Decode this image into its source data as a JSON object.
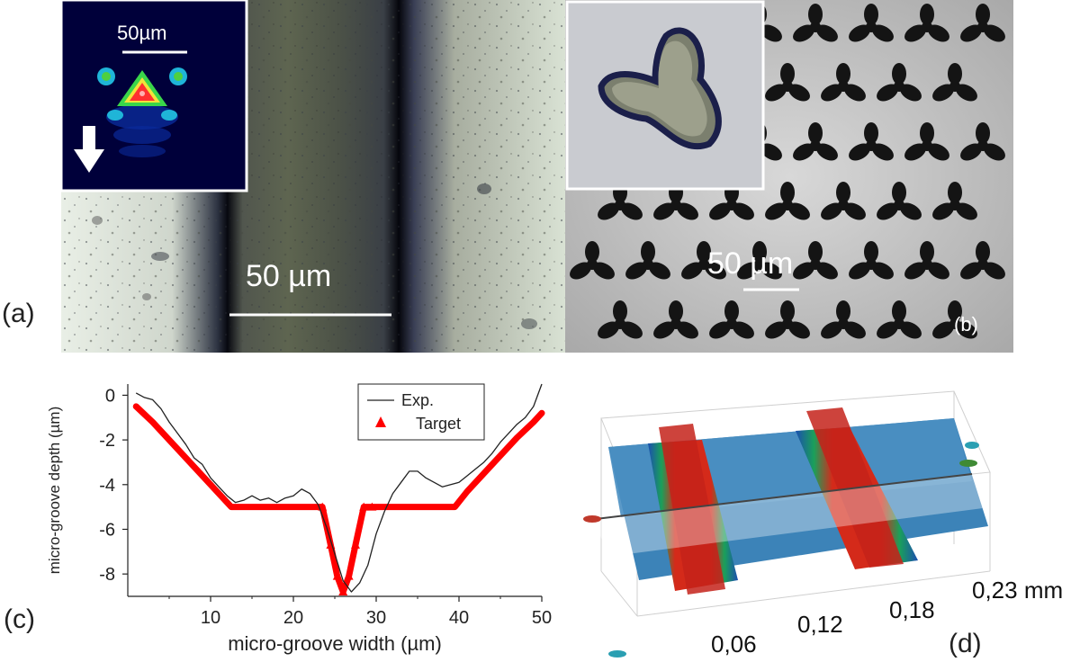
{
  "panel_labels": {
    "a": "(a)",
    "b": "(b)",
    "c": "(c)",
    "d": "(d)"
  },
  "panel_a": {
    "inset_scale": "50µm",
    "scale_bar": "50 µm"
  },
  "panel_b": {
    "scale_bar": "50 µm"
  },
  "chart_data": {
    "type": "line",
    "xlabel": "micro-groove width (µm)",
    "ylabel": "micro-groove depth (µm)",
    "xlim": [
      0,
      50
    ],
    "ylim": [
      -9,
      0.5
    ],
    "xticks": [
      "10",
      "20",
      "30",
      "40",
      "50"
    ],
    "yticks": [
      "0",
      "-2",
      "-4",
      "-6",
      "-8"
    ],
    "legend_position": "top-right",
    "series": [
      {
        "name": "Exp.",
        "color": "#222222",
        "x": [
          1,
          2,
          3,
          4,
          5,
          6,
          7,
          8,
          9,
          10,
          11,
          12,
          13,
          14,
          15,
          16,
          17,
          18,
          19,
          20,
          21,
          22,
          23,
          24,
          25,
          26,
          27,
          28,
          29,
          30,
          31,
          32,
          33,
          34,
          35,
          36,
          37,
          38,
          39,
          40,
          41,
          42,
          43,
          44,
          45,
          46,
          47,
          48,
          49,
          50
        ],
        "y": [
          0.1,
          -0.1,
          -0.2,
          -0.6,
          -1.2,
          -1.7,
          -2.2,
          -2.8,
          -3.1,
          -3.7,
          -4.1,
          -4.5,
          -4.8,
          -4.7,
          -4.5,
          -4.7,
          -4.6,
          -4.8,
          -4.6,
          -4.5,
          -4.2,
          -4.4,
          -4.9,
          -5.9,
          -7.1,
          -8.3,
          -8.8,
          -8.4,
          -7.6,
          -6.2,
          -5.2,
          -4.4,
          -3.9,
          -3.4,
          -3.4,
          -3.7,
          -3.9,
          -4.1,
          -4.0,
          -3.9,
          -3.6,
          -3.3,
          -3.0,
          -2.6,
          -2.1,
          -1.7,
          -1.3,
          -1.0,
          -0.5,
          0.5
        ]
      },
      {
        "name": "Target",
        "color": "#ff0000",
        "marker": "triangle",
        "x": [
          1,
          3,
          5,
          7,
          9,
          11,
          12.5,
          14,
          16,
          18,
          20,
          22,
          23.5,
          24.5,
          25.3,
          26,
          26.7,
          27.5,
          28.5,
          29.5,
          32,
          34,
          36,
          38,
          39.5,
          41,
          43,
          45,
          47,
          49,
          50
        ],
        "y": [
          -0.5,
          -1.2,
          -2.0,
          -2.8,
          -3.6,
          -4.4,
          -5.0,
          -5.0,
          -5.0,
          -5.0,
          -5.0,
          -5.0,
          -5.0,
          -6.7,
          -8.1,
          -8.8,
          -8.1,
          -6.7,
          -5.0,
          -5.0,
          -5.0,
          -5.0,
          -5.0,
          -5.0,
          -5.0,
          -4.3,
          -3.5,
          -2.7,
          -1.9,
          -1.2,
          -0.8
        ]
      }
    ]
  },
  "panel_d": {
    "axis_ticks": [
      "0,06",
      "0,12",
      "0,18",
      "0,23 mm"
    ]
  }
}
